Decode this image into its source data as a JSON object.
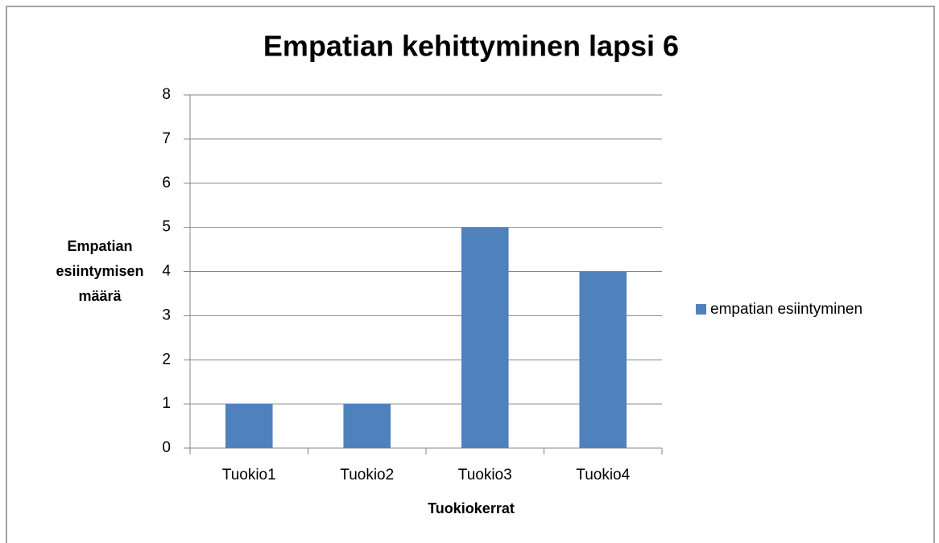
{
  "chart_data": {
    "type": "bar",
    "title": "Empatian kehittyminen lapsi 6",
    "ylabel": [
      "Empatian",
      "esiintymisen",
      "määrä"
    ],
    "xlabel": "Tuokiokerrat",
    "categories": [
      "Tuokio1",
      "Tuokio2",
      "Tuokio3",
      "Tuokio4"
    ],
    "series": [
      {
        "name": "empatian esiintyminen",
        "color": "#4f81bd",
        "values": [
          1,
          1,
          5,
          4
        ]
      }
    ],
    "ylim": [
      0,
      8
    ],
    "yticks": [
      0,
      1,
      2,
      3,
      4,
      5,
      6,
      7,
      8
    ],
    "grid": true,
    "legend": "right"
  }
}
